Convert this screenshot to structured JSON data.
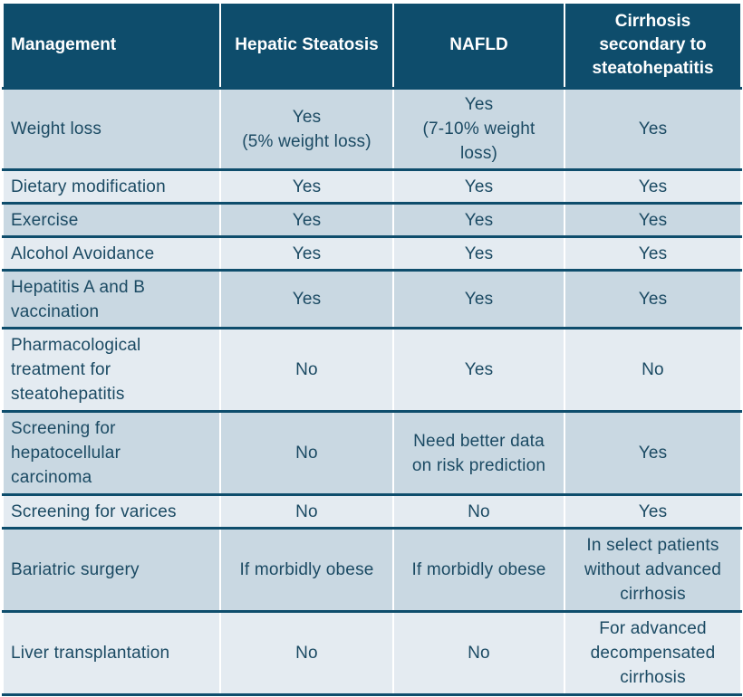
{
  "table": {
    "headers": [
      "Management",
      "Hepatic Steatosis",
      "NAFLD",
      "Cirrhosis secondary to steatohepatitis"
    ],
    "rows": [
      {
        "label": "Weight loss",
        "cells": [
          "Yes\n(5% weight loss)",
          "Yes\n(7-10% weight loss)",
          "Yes"
        ]
      },
      {
        "label": "Dietary modification",
        "cells": [
          "Yes",
          "Yes",
          "Yes"
        ]
      },
      {
        "label": "Exercise",
        "cells": [
          "Yes",
          "Yes",
          "Yes"
        ]
      },
      {
        "label": "Alcohol Avoidance",
        "cells": [
          "Yes",
          "Yes",
          "Yes"
        ]
      },
      {
        "label": "Hepatitis A and B vaccination",
        "cells": [
          "Yes",
          "Yes",
          "Yes"
        ]
      },
      {
        "label": "Pharmacological treatment for steatohepatitis",
        "cells": [
          "No",
          "Yes",
          "No"
        ]
      },
      {
        "label": "Screening for hepatocellular carcinoma",
        "cells": [
          "No",
          "Need better data on risk prediction",
          "Yes"
        ]
      },
      {
        "label": "Screening for varices",
        "cells": [
          "No",
          "No",
          "Yes"
        ]
      },
      {
        "label": "Bariatric surgery",
        "cells": [
          "If morbidly obese",
          "If morbidly obese",
          "In select patients without advanced cirrhosis"
        ]
      },
      {
        "label": "Liver transplantation",
        "cells": [
          "No",
          "No",
          "For advanced decompensated cirrhosis"
        ]
      }
    ]
  },
  "colors": {
    "header_bg": "#0e4d6c",
    "row_dark": "#c9d8e2",
    "row_light": "#e4ebf1",
    "text": "#1b4a63"
  }
}
